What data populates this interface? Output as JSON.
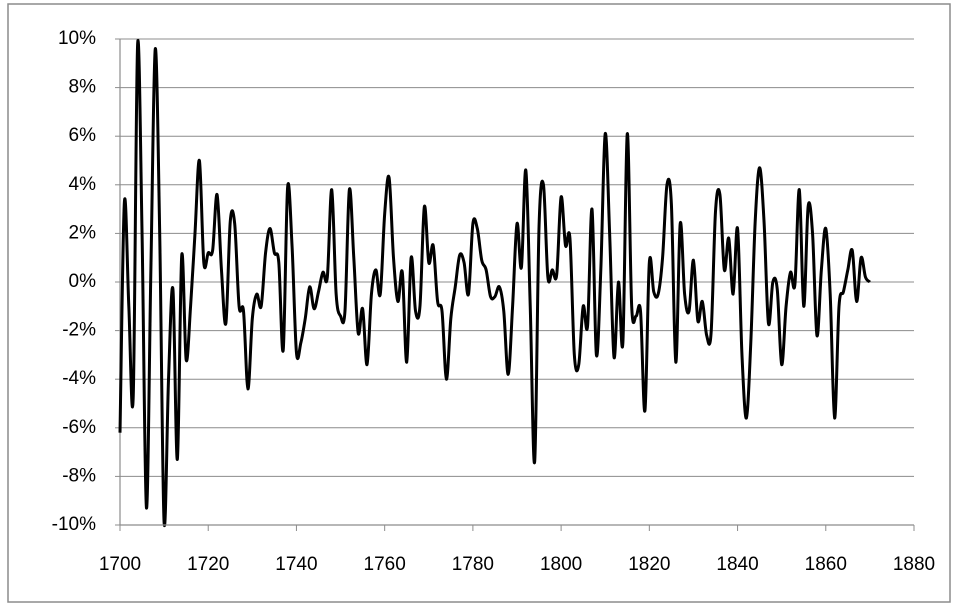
{
  "chart_data": {
    "type": "line",
    "x": [
      1700,
      1701,
      1702,
      1703,
      1704,
      1705,
      1706,
      1707,
      1708,
      1709,
      1710,
      1711,
      1712,
      1713,
      1714,
      1715,
      1716,
      1717,
      1718,
      1719,
      1720,
      1721,
      1722,
      1723,
      1724,
      1725,
      1726,
      1727,
      1728,
      1729,
      1730,
      1731,
      1732,
      1733,
      1734,
      1735,
      1736,
      1737,
      1738,
      1739,
      1740,
      1741,
      1742,
      1743,
      1744,
      1745,
      1746,
      1747,
      1748,
      1749,
      1750,
      1751,
      1752,
      1753,
      1754,
      1755,
      1756,
      1757,
      1758,
      1759,
      1760,
      1761,
      1762,
      1763,
      1764,
      1765,
      1766,
      1767,
      1768,
      1769,
      1770,
      1771,
      1772,
      1773,
      1774,
      1775,
      1776,
      1777,
      1778,
      1779,
      1780,
      1781,
      1782,
      1783,
      1784,
      1785,
      1786,
      1787,
      1788,
      1789,
      1790,
      1791,
      1792,
      1793,
      1794,
      1795,
      1796,
      1797,
      1798,
      1799,
      1800,
      1801,
      1802,
      1803,
      1804,
      1805,
      1806,
      1807,
      1808,
      1809,
      1810,
      1811,
      1812,
      1813,
      1814,
      1815,
      1816,
      1817,
      1818,
      1819,
      1820,
      1821,
      1822,
      1823,
      1824,
      1825,
      1826,
      1827,
      1828,
      1829,
      1830,
      1831,
      1832,
      1833,
      1834,
      1835,
      1836,
      1837,
      1838,
      1839,
      1840,
      1841,
      1842,
      1843,
      1844,
      1845,
      1846,
      1847,
      1848,
      1849,
      1850,
      1851,
      1852,
      1853,
      1854,
      1855,
      1856,
      1857,
      1858,
      1859,
      1860,
      1861,
      1862,
      1863,
      1864,
      1865,
      1866,
      1867,
      1868,
      1869,
      1870
    ],
    "values": [
      -6.2,
      3.3,
      -1.0,
      -4.7,
      9.8,
      2.0,
      -9.3,
      0.5,
      9.6,
      2.0,
      -9.9,
      -4.0,
      -0.3,
      -7.3,
      1.1,
      -3.2,
      -1.0,
      2.0,
      5.0,
      0.8,
      1.2,
      1.3,
      3.6,
      0.5,
      -1.7,
      2.5,
      2.4,
      -1.0,
      -1.2,
      -4.4,
      -1.5,
      -0.5,
      -1.0,
      1.2,
      2.2,
      1.2,
      0.8,
      -2.8,
      3.9,
      1.5,
      -2.9,
      -2.5,
      -1.5,
      -0.2,
      -1.1,
      -0.4,
      0.4,
      0.2,
      3.8,
      -0.5,
      -1.4,
      -1.2,
      3.8,
      1.0,
      -2.1,
      -1.1,
      -3.4,
      -0.5,
      0.5,
      -0.5,
      2.8,
      4.3,
      1.0,
      -0.8,
      0.4,
      -3.3,
      1.0,
      -1.2,
      -1.0,
      3.1,
      0.8,
      1.5,
      -0.8,
      -1.2,
      -4.0,
      -1.5,
      -0.2,
      1.1,
      0.8,
      -0.5,
      2.4,
      2.2,
      0.9,
      0.5,
      -0.6,
      -0.6,
      -0.2,
      -1.2,
      -3.8,
      -1.0,
      2.4,
      0.6,
      4.6,
      -1.0,
      -7.4,
      2.3,
      4.0,
      0.2,
      0.5,
      0.3,
      3.5,
      1.5,
      1.8,
      -3.0,
      -3.4,
      -1.0,
      -1.8,
      3.0,
      -3.0,
      0.5,
      6.1,
      2.0,
      -3.1,
      0.0,
      -2.5,
      6.1,
      -1.0,
      -1.4,
      -1.2,
      -5.3,
      0.8,
      -0.4,
      -0.5,
      1.0,
      4.0,
      3.2,
      -3.3,
      2.4,
      -0.5,
      -1.2,
      0.9,
      -1.6,
      -0.8,
      -2.2,
      -2.1,
      2.9,
      3.6,
      0.5,
      1.8,
      -0.5,
      2.2,
      -3.0,
      -5.6,
      -2.5,
      2.5,
      4.7,
      2.5,
      -1.7,
      0.0,
      -0.3,
      -3.4,
      -1.0,
      0.4,
      -0.1,
      3.8,
      -1.0,
      3.1,
      2.0,
      -2.2,
      0.5,
      2.2,
      -0.5,
      -5.6,
      -1.0,
      -0.4,
      0.5,
      1.3,
      -0.8,
      1.0,
      0.2,
      0.0
    ],
    "color": "#000000",
    "xlim": [
      1700,
      1880
    ],
    "xticks": [
      1700,
      1720,
      1740,
      1760,
      1780,
      1800,
      1820,
      1840,
      1860,
      1880
    ],
    "ylim": [
      -10,
      10
    ],
    "yticks": [
      {
        "value": -10,
        "label": "-10%"
      },
      {
        "value": -8,
        "label": "-8%"
      },
      {
        "value": -6,
        "label": "-6%"
      },
      {
        "value": -4,
        "label": "-4%"
      },
      {
        "value": -2,
        "label": "-2%"
      },
      {
        "value": 0,
        "label": "0%"
      },
      {
        "value": 2,
        "label": "2%"
      },
      {
        "value": 4,
        "label": "4%"
      },
      {
        "value": 6,
        "label": "6%"
      },
      {
        "value": 8,
        "label": "8%"
      },
      {
        "value": 10,
        "label": "10%"
      }
    ],
    "grid": true
  }
}
